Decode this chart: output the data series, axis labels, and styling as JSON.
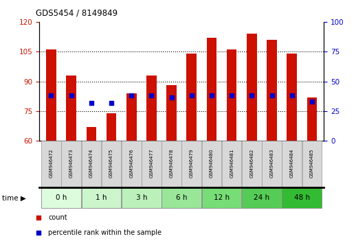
{
  "title": "GDS5454 / 8149849",
  "samples": [
    "GSM946472",
    "GSM946473",
    "GSM946474",
    "GSM946475",
    "GSM946476",
    "GSM946477",
    "GSM946478",
    "GSM946479",
    "GSM946480",
    "GSM946481",
    "GSM946482",
    "GSM946483",
    "GSM946484",
    "GSM946485"
  ],
  "count_values": [
    106,
    93,
    67,
    74,
    84,
    93,
    88,
    104,
    112,
    106,
    114,
    111,
    104,
    82
  ],
  "percentile_values_left": [
    83,
    83,
    79,
    79,
    83,
    83,
    82,
    83,
    83,
    83,
    83,
    83,
    83,
    80
  ],
  "percentile_values_right": [
    38.3,
    38.3,
    31.7,
    31.7,
    38.3,
    38.3,
    36.7,
    38.3,
    38.3,
    38.3,
    38.3,
    38.3,
    38.3,
    33.3
  ],
  "time_groups": [
    {
      "label": "0 h",
      "indices": [
        0,
        1
      ],
      "color": "#ddfcdd"
    },
    {
      "label": "1 h",
      "indices": [
        2,
        3
      ],
      "color": "#ccf5cc"
    },
    {
      "label": "3 h",
      "indices": [
        4,
        5
      ],
      "color": "#bbf0bb"
    },
    {
      "label": "6 h",
      "indices": [
        6,
        7
      ],
      "color": "#99e699"
    },
    {
      "label": "12 h",
      "indices": [
        8,
        9
      ],
      "color": "#77dd77"
    },
    {
      "label": "24 h",
      "indices": [
        10,
        11
      ],
      "color": "#55cc55"
    },
    {
      "label": "48 h",
      "indices": [
        12,
        13
      ],
      "color": "#33bb33"
    }
  ],
  "ylim_left": [
    60,
    120
  ],
  "yticks_left": [
    60,
    75,
    90,
    105,
    120
  ],
  "ylim_right": [
    0,
    100
  ],
  "yticks_right": [
    0,
    25,
    50,
    75,
    100
  ],
  "bar_color": "#cc1100",
  "dot_color": "#0000cc",
  "axis_color_left": "#cc1100",
  "axis_color_right": "#0000cc",
  "grid_dotted_at": [
    75,
    90,
    105
  ],
  "bar_width": 0.5
}
